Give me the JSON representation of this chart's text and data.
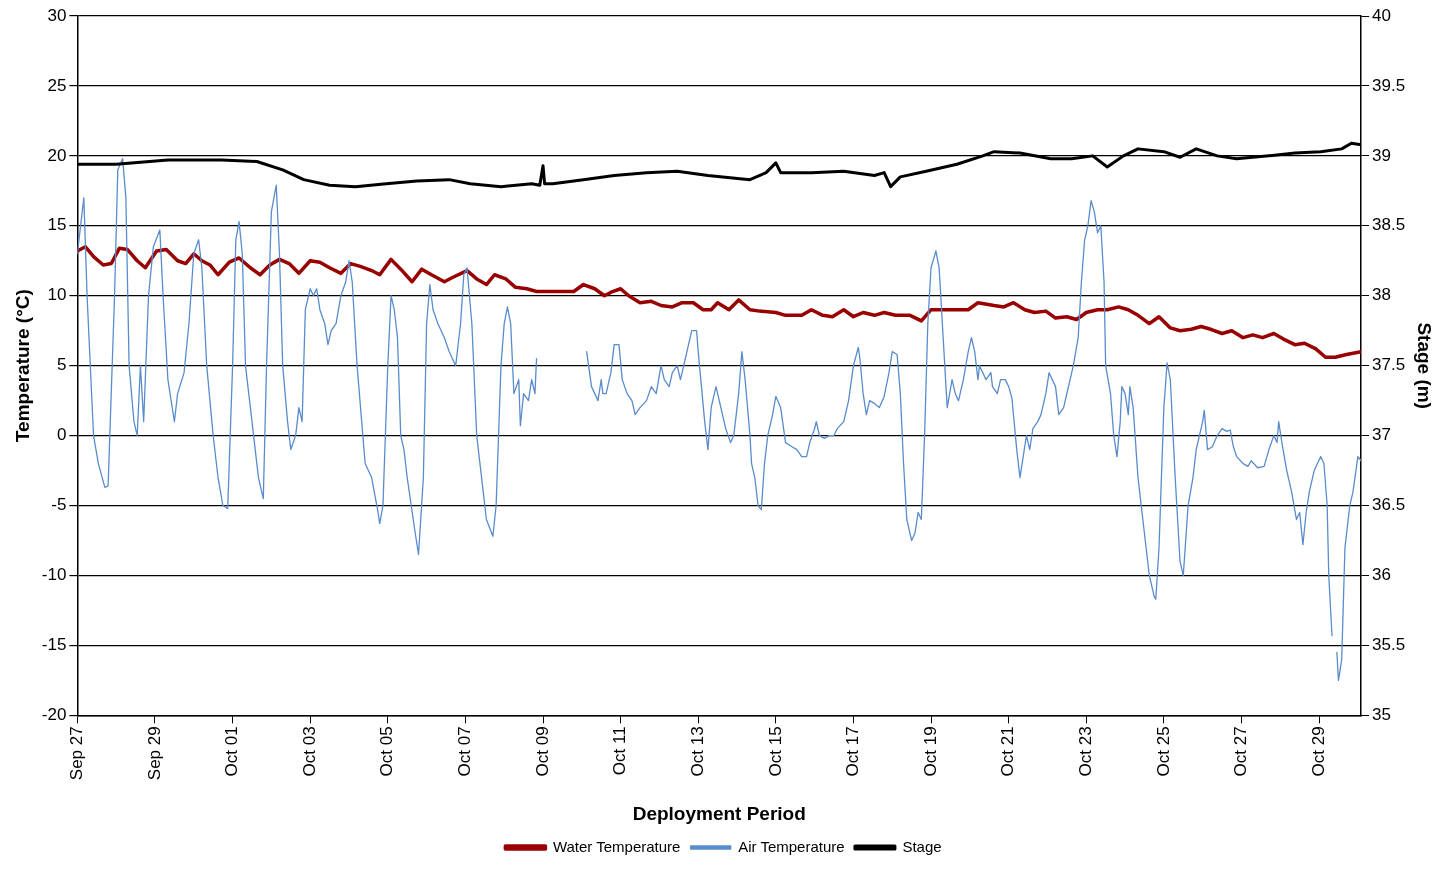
{
  "chart_data": {
    "type": "line",
    "xlabel": "Deployment Period",
    "ylabel": "Temperature (°C)",
    "y2label": "Stage (m)",
    "xlim": [
      "--09-27T00:00",
      "--10-30T02:00"
    ],
    "xticks": [
      {
        "value": "--09-27",
        "label": "Sep 27"
      },
      {
        "value": "--09-29",
        "label": "Sep 29"
      },
      {
        "value": "--10-01",
        "label": "Oct 01"
      },
      {
        "value": "--10-03",
        "label": "Oct 03"
      },
      {
        "value": "--10-05",
        "label": "Oct 05"
      },
      {
        "value": "--10-07",
        "label": "Oct 07"
      },
      {
        "value": "--10-09",
        "label": "Oct 09"
      },
      {
        "value": "--10-11",
        "label": "Oct 11"
      },
      {
        "value": "--10-13",
        "label": "Oct 13"
      },
      {
        "value": "--10-15",
        "label": "Oct 15"
      },
      {
        "value": "--10-17",
        "label": "Oct 17"
      },
      {
        "value": "--10-19",
        "label": "Oct 19"
      },
      {
        "value": "--10-21",
        "label": "Oct 21"
      },
      {
        "value": "--10-23",
        "label": "Oct 23"
      },
      {
        "value": "--10-25",
        "label": "Oct 25"
      },
      {
        "value": "--10-27",
        "label": "Oct 27"
      },
      {
        "value": "--10-29",
        "label": "Oct 29"
      }
    ],
    "ylim": [
      -20,
      30
    ],
    "yticks": [
      -20,
      -15,
      -10,
      -5,
      0,
      5,
      10,
      15,
      20,
      25,
      30
    ],
    "y2lim": [
      35,
      40
    ],
    "y2ticks": [
      35,
      35.5,
      36,
      36.5,
      37,
      37.5,
      38,
      38.5,
      39,
      39.5,
      40
    ],
    "grid": "y",
    "legend": "bottom",
    "marker": "none",
    "line_style": "solid",
    "series": [
      {
        "name": "Water Temperature",
        "color": "#990000",
        "x": [
          "--09-27T00:00",
          "--09-27T05:00",
          "--09-27T10:00",
          "--09-27T16:00",
          "--09-27T21:00",
          "--09-28T02:00",
          "--09-28T07:00",
          "--09-28T13:00",
          "--09-28T18:00",
          "--09-29T01:00",
          "--09-29T07:00",
          "--09-29T14:00",
          "--09-29T19:00",
          "--09-30T00:00",
          "--09-30T05:00",
          "--09-30T10:00",
          "--09-30T15:00",
          "--09-30T22:00",
          "--10-01T04:00",
          "--10-01T11:00",
          "--10-01T17:00",
          "--10-01T23:00",
          "--10-02T05:00",
          "--10-02T11:00",
          "--10-02T17:00",
          "--10-03T00:00",
          "--10-03T06:00",
          "--10-03T12:00",
          "--10-03T19:00",
          "--10-04T01:00",
          "--10-04T07:00",
          "--10-04T14:00",
          "--10-04T19:00",
          "--10-05T02:00",
          "--10-05T08:00",
          "--10-05T15:00",
          "--10-05T21:00",
          "--10-06T03:00",
          "--10-06T11:00",
          "--10-06T16:00",
          "--10-07T01:00",
          "--10-07T07:00",
          "--10-07T13:00",
          "--10-07T18:00",
          "--10-08T01:00",
          "--10-08T07:00",
          "--10-08T14:00",
          "--10-08T20:00",
          "--10-09T03:00",
          "--10-09T19:00",
          "--10-10T01:00",
          "--10-10T08:00",
          "--10-10T14:00",
          "--10-10T19:00",
          "--10-11T00:00",
          "--10-11T05:00",
          "--10-11T12:00",
          "--10-11T19:00",
          "--10-12T01:00",
          "--10-12T08:00",
          "--10-12T14:00",
          "--10-12T21:00",
          "--10-13T03:00",
          "--10-13T08:00",
          "--10-13T12:00",
          "--10-13T19:00",
          "--10-14T01:00",
          "--10-14T08:00",
          "--10-14T14:00",
          "--10-15T00:00",
          "--10-15T06:00",
          "--10-15T16:00",
          "--10-15T22:00",
          "--10-16T05:00",
          "--10-16T11:00",
          "--10-16T18:00",
          "--10-17T00:00",
          "--10-17T06:00",
          "--10-17T13:00",
          "--10-17T19:00",
          "--10-18T02:00",
          "--10-18T11:00",
          "--10-18T18:00",
          "--10-19T00:00",
          "--10-19T06:00",
          "--10-19T13:00",
          "--10-19T23:00",
          "--10-20T05:00",
          "--10-20T15:00",
          "--10-20T21:00",
          "--10-21T03:00",
          "--10-21T10:00",
          "--10-21T16:00",
          "--10-21T23:00",
          "--10-22T05:00",
          "--10-22T12:00",
          "--10-22T18:00",
          "--10-23T00:00",
          "--10-23T07:00",
          "--10-23T13:00",
          "--10-23T20:00",
          "--10-24T02:00",
          "--10-24T08:00",
          "--10-24T15:00",
          "--10-24T21:00",
          "--10-25T04:00",
          "--10-25T10:00",
          "--10-25T17:00",
          "--10-25T23:00",
          "--10-26T05:00",
          "--10-26T12:00",
          "--10-26T18:00",
          "--10-27T01:00",
          "--10-27T07:00",
          "--10-27T13:00",
          "--10-27T20:00",
          "--10-28T02:00",
          "--10-28T09:00",
          "--10-28T15:00",
          "--10-28T22:00",
          "--10-29T04:00",
          "--10-29T10:00",
          "--10-29T17:00",
          "--10-30T02:00"
        ],
        "values": [
          13.2,
          13.5,
          12.8,
          12.2,
          12.3,
          13.4,
          13.3,
          12.5,
          12,
          13.2,
          13.3,
          12.5,
          12.3,
          13,
          12.5,
          12.2,
          11.5,
          12.4,
          12.7,
          12,
          11.5,
          12.2,
          12.6,
          12.3,
          11.6,
          12.5,
          12.4,
          12,
          11.6,
          12.3,
          12.1,
          11.8,
          11.5,
          12.6,
          11.9,
          11,
          11.9,
          11.5,
          11,
          11.3,
          11.8,
          11.2,
          10.8,
          11.5,
          11.2,
          10.6,
          10.5,
          10.3,
          10.3,
          10.3,
          10.8,
          10.5,
          10,
          10.3,
          10.5,
          10,
          9.5,
          9.6,
          9.3,
          9.2,
          9.5,
          9.5,
          9,
          9,
          9.5,
          9,
          9.7,
          9,
          8.9,
          8.8,
          8.6,
          8.6,
          9,
          8.6,
          8.5,
          9,
          8.5,
          8.8,
          8.6,
          8.8,
          8.6,
          8.6,
          8.2,
          9,
          9,
          9,
          9,
          9.5,
          9.3,
          9.2,
          9.5,
          9,
          8.8,
          8.9,
          8.4,
          8.5,
          8.3,
          8.8,
          9,
          9,
          9.2,
          9,
          8.6,
          8,
          8.5,
          7.7,
          7.5,
          7.6,
          7.8,
          7.6,
          7.3,
          7.5,
          7,
          7.2,
          7,
          7.3,
          6.9,
          6.5,
          6.6,
          6.2,
          5.6,
          5.6,
          5.8,
          6
        ]
      },
      {
        "name": "Air Temperature",
        "color": "#5a8ccc",
        "x": [
          "--09-27T00:00",
          "--09-27T04:00",
          "--09-27T06:00",
          "--09-27T10:00",
          "--09-27T13:00",
          "--09-27T17:00",
          "--09-27T19:00",
          "--09-27T23:00",
          "--09-28T01:00",
          "--09-28T04:00",
          "--09-28T06:00",
          "--09-28T08:00",
          "--09-28T11:00",
          "--09-28T13:00",
          "--09-28T15:00",
          "--09-28T17:00",
          "--09-28T20:00",
          "--09-28T23:00",
          "--09-29T03:00",
          "--09-29T05:00",
          "--09-29T08:00",
          "--09-29T12:00",
          "--09-29T14:00",
          "--09-29T18:00",
          "--09-29T21:00",
          "--09-30T00:00",
          "--09-30T03:00",
          "--09-30T05:00",
          "--09-30T08:00",
          "--09-30T12:00",
          "--09-30T15:00",
          "--09-30T18:00",
          "--09-30T21:00",
          "--10-01T00:00",
          "--10-01T02:00",
          "--10-01T04:00",
          "--10-01T06:00",
          "--10-01T08:00",
          "--10-01T11:00",
          "--10-01T14:00",
          "--10-01T16:00",
          "--10-01T19:00",
          "--10-01T21:00",
          "--10-02T00:00",
          "--10-02T03:00",
          "--10-02T05:00",
          "--10-02T07:00",
          "--10-02T10:00",
          "--10-02T12:00",
          "--10-02T15:00",
          "--10-02T17:00",
          "--10-02T19:00",
          "--10-02T21:00",
          "--10-03T00:00",
          "--10-03T02:00",
          "--10-03T04:00",
          "--10-03T06:00",
          "--10-03T09:00",
          "--10-03T11:00",
          "--10-03T13:00",
          "--10-03T16:00",
          "--10-03T19:00",
          "--10-03T22:00",
          "--10-04T00:00",
          "--10-04T02:00",
          "--10-04T05:00",
          "--10-04T10:00",
          "--10-04T14:00",
          "--10-04T18:00",
          "--10-04T19:00",
          "--10-04T21:00",
          "--10-05T00:00",
          "--10-05T02:00",
          "--10-05T04:00",
          "--10-05T06:00",
          "--10-05T08:00",
          "--10-05T10:00",
          "--10-05T12:00",
          "--10-05T17:00",
          "--10-05T19:00",
          "--10-05T22:00",
          "--10-06T00:00",
          "--10-06T02:00",
          "--10-06T04:00",
          "--10-06T07:00",
          "--10-06T11:00",
          "--10-06T14:00",
          "--10-06T18:00",
          "--10-06T21:00",
          "--10-06T23:00",
          "--10-07T01:00",
          "--10-07T04:00",
          "--10-07T07:00",
          "--10-07T10:00",
          "--10-07T13:00",
          "--10-07T17:00",
          "--10-07T19:00",
          "--10-07T22:00",
          "--10-08T00:00",
          "--10-08T02:00",
          "--10-08T04:00",
          "--10-08T06:00",
          "--10-08T09:00",
          "--10-08T10:00",
          "--10-08T12:00",
          "--10-08T15:00",
          "--10-08T17:00",
          "--10-08T19:00",
          "--10-08T20:00",
          "--10-09T12:00",
          "--10-10T03:00",
          "--10-10T06:00",
          "--10-10T08:00",
          "--10-10T10:00",
          "--10-10T12:00",
          "--10-10T13:00",
          "--10-10T15:00",
          "--10-10T18:00",
          "--10-10T20:00",
          "--10-10T23:00",
          "--10-11T01:00",
          "--10-11T04:00",
          "--10-11T07:00",
          "--10-11T09:00",
          "--10-11T12:00",
          "--10-11T16:00",
          "--10-11T19:00",
          "--10-11T22:00",
          "--10-12T01:00",
          "--10-12T03:00",
          "--10-12T06:00",
          "--10-12T08:00",
          "--10-12T11:00",
          "--10-12T13:00",
          "--10-12T17:00",
          "--10-12T20:00",
          "--10-12T23:00",
          "--10-13T00:00",
          "--10-13T04:00",
          "--10-13T06:00",
          "--10-13T08:00",
          "--10-13T11:00",
          "--10-13T14:00",
          "--10-13T17:00",
          "--10-13T20:00",
          "--10-13T22:00",
          "--10-14T01:00",
          "--10-14T03:00",
          "--10-14T05:00",
          "--10-14T08:00",
          "--10-14T09:00",
          "--10-14T11:00",
          "--10-14T13:00",
          "--10-14T15:00",
          "--10-14T17:00",
          "--10-14T19:00",
          "--10-14T22:00",
          "--10-15T00:00",
          "--10-15T03:00",
          "--10-15T06:00",
          "--10-15T10:00",
          "--10-15T13:00",
          "--10-15T16:00",
          "--10-15T19:00",
          "--10-15T21:00",
          "--10-16T00:00",
          "--10-16T01:00",
          "--10-16T03:00",
          "--10-16T06:00",
          "--10-16T09:00",
          "--10-16T12:00",
          "--10-16T14:00",
          "--10-16T18:00",
          "--10-16T21:00",
          "--10-17T00:00",
          "--10-17T03:00",
          "--10-17T04:00",
          "--10-17T06:00",
          "--10-17T08:00",
          "--10-17T10:00",
          "--10-17T13:00",
          "--10-17T16:00",
          "--10-17T19:00",
          "--10-17T22:00",
          "--10-18T00:00",
          "--10-18T03:00",
          "--10-18T05:00",
          "--10-18T07:00",
          "--10-18T09:00",
          "--10-18T12:00",
          "--10-18T14:00",
          "--10-18T16:00",
          "--10-18T18:00",
          "--10-18T20:00",
          "--10-18T22:00",
          "--10-19T00:00",
          "--10-19T03:00",
          "--10-19T05:00",
          "--10-19T06:00",
          "--10-19T08:00",
          "--10-19T10:00",
          "--10-19T13:00",
          "--10-19T15:00",
          "--10-19T17:00",
          "--10-19T20:00",
          "--10-19T23:00",
          "--10-20T01:00",
          "--10-20T03:00",
          "--10-20T05:00",
          "--10-20T06:00",
          "--10-20T10:00",
          "--10-20T13:00",
          "--10-20T14:00",
          "--10-20T17:00",
          "--10-20T19:00",
          "--10-20T22:00",
          "--10-21T00:00",
          "--10-21T02:00",
          "--10-21T05:00",
          "--10-21T07:00",
          "--10-21T09:00",
          "--10-21T11:00",
          "--10-21T13:00",
          "--10-21T15:00",
          "--10-21T18:00",
          "--10-21T20:00",
          "--10-21T23:00",
          "--10-22T01:00",
          "--10-22T05:00",
          "--10-22T07:00",
          "--10-22T10:00",
          "--10-22T13:00",
          "--10-22T16:00",
          "--10-22T19:00",
          "--10-22T21:00",
          "--10-22T23:00",
          "--10-23T01:00",
          "--10-23T03:00",
          "--10-23T05:00",
          "--10-23T07:00",
          "--10-23T09:00",
          "--10-23T11:00",
          "--10-23T12:00",
          "--10-23T15:00",
          "--10-23T17:00",
          "--10-23T19:00",
          "--10-23T21:00",
          "--10-23T22:00",
          "--10-24T00:00",
          "--10-24T02:00",
          "--10-24T03:00",
          "--10-24T05:00",
          "--10-24T08:00",
          "--10-24T12:00",
          "--10-24T15:00",
          "--10-24T18:00",
          "--10-24T19:00",
          "--10-24T21:00",
          "--10-25T00:00",
          "--10-25T02:00",
          "--10-25T04:00",
          "--10-25T07:00",
          "--10-25T10:00",
          "--10-25T12:00",
          "--10-25T15:00",
          "--10-25T18:00",
          "--10-25T20:00",
          "--10-26T00:00",
          "--10-26T01:00",
          "--10-26T03:00",
          "--10-26T06:00",
          "--10-26T09:00",
          "--10-26T12:00",
          "--10-26T15:00",
          "--10-26T17:00",
          "--10-26T19:00",
          "--10-26T21:00",
          "--10-27T01:00",
          "--10-27T04:00",
          "--10-27T06:00",
          "--10-27T10:00",
          "--10-27T14:00",
          "--10-27T17:00",
          "--10-27T20:00",
          "--10-27T22:00",
          "--10-27T23:00",
          "--10-28T01:00",
          "--10-28T04:00",
          "--10-28T07:00",
          "--10-28T10:00",
          "--10-28T12:00",
          "--10-28T14:00",
          "--10-28T16:00",
          "--10-28T18:00",
          "--10-28T21:00",
          "--10-28T23:00",
          "--10-29T01:00",
          "--10-29T03:00",
          "--10-29T05:00",
          "--10-29T06:00",
          "--10-29T08:00",
          "--10-29T10:00",
          "--10-29T11:00",
          "--10-29T12:00",
          "--10-29T14:00",
          "--10-29T16:00",
          "--10-29T19:00",
          "--10-29T21:00",
          "--10-30T00:00",
          "--10-30T02:00"
        ],
        "values": [
          13,
          17,
          10,
          0,
          -2,
          -3.7,
          -3.6,
          10,
          19,
          19.8,
          17,
          5,
          1,
          0,
          5,
          1,
          10,
          13.5,
          14.7,
          10,
          4,
          1,
          3,
          4.5,
          8,
          13,
          14,
          12,
          5,
          0,
          -3,
          -5,
          -5.2,
          5,
          14,
          15.3,
          13,
          5,
          2,
          -1,
          -3,
          -4.5,
          5,
          16,
          17.9,
          13,
          5,
          1,
          -1,
          0,
          2,
          1,
          9,
          10.5,
          10,
          10.5,
          9,
          8,
          6.5,
          7.5,
          8,
          10,
          11,
          12.5,
          11,
          5,
          -2,
          -3,
          -5.5,
          -6.3,
          -5,
          5,
          10,
          9,
          7,
          0,
          -1,
          -3,
          -7,
          -8.5,
          -3,
          8,
          10.8,
          9,
          8,
          7,
          6,
          5,
          8,
          11.5,
          12,
          8,
          0,
          -3,
          -6,
          -7.2,
          -5,
          5,
          8,
          9.2,
          8,
          3,
          4,
          0.7,
          3,
          2.5,
          4,
          3,
          5.5,
          null,
          6,
          3.5,
          3,
          2.5,
          4,
          3,
          3,
          4.5,
          6.5,
          6.5,
          4,
          3,
          2.5,
          1.5,
          2,
          2.5,
          3.5,
          3,
          5,
          4,
          3.5,
          4.5,
          5,
          4,
          6,
          7.5,
          7.5,
          6,
          1,
          -1,
          2,
          3.5,
          2,
          0.5,
          -0.5,
          0,
          3,
          6,
          4,
          0,
          -2,
          -3,
          -5,
          -5.3,
          -2,
          0,
          1.5,
          2.8,
          2,
          -0.5,
          -0.8,
          -1,
          -1.5,
          -1.5,
          -0.5,
          0.5,
          1,
          0,
          -0.2,
          0,
          0,
          0.5,
          1,
          2.5,
          5,
          6.3,
          5.5,
          3,
          1.5,
          2.5,
          2.3,
          2,
          2.8,
          4.5,
          6,
          5.8,
          3,
          -2,
          -6,
          -7.5,
          -7,
          -5.5,
          -6,
          0,
          8,
          12,
          13.2,
          12,
          10,
          6,
          2,
          4,
          3,
          2.5,
          4,
          6,
          7,
          6,
          4,
          5,
          4,
          4.5,
          3.5,
          3,
          4,
          4,
          3.5,
          2.7,
          -1,
          -3,
          -1.5,
          0,
          -1,
          0.5,
          1,
          1.5,
          3,
          4.5,
          3.5,
          1.5,
          2,
          3.5,
          5,
          7,
          11,
          14,
          15,
          16.8,
          16,
          14.5,
          15,
          11,
          5,
          3,
          0,
          -1.5,
          1,
          3.5,
          3,
          1.5,
          3.5,
          2,
          -3,
          -7,
          -10,
          -11.5,
          -11.7,
          -8,
          2,
          5.2,
          4,
          -3,
          -9,
          -10,
          -5,
          -3,
          -1,
          1,
          1.8,
          -1,
          -0.8,
          0,
          0.5,
          0.3,
          0.4,
          -0.8,
          -1.5,
          -2,
          -2.2,
          -1.8,
          -2.3,
          -2.2,
          -1,
          0,
          -0.5,
          1,
          -0.5,
          -2.5,
          -4,
          -6,
          -5.5,
          -7.8,
          -5.5,
          -4,
          -2.5,
          -2,
          -1.5,
          -2,
          -5,
          -10,
          -14.3,
          null,
          -15.5,
          -17.5,
          -16,
          -8,
          -5,
          -4,
          -1.5,
          -1.8
        ]
      },
      {
        "name": "Stage",
        "color": "#000000",
        "axis": "y2",
        "x": [
          "--09-27T00:00",
          "--09-28T00:00",
          "--09-29T08:00",
          "--09-30T17:00",
          "--10-01T15:00",
          "--10-02T07:00",
          "--10-02T20:00",
          "--10-03T12:00",
          "--10-04T04:00",
          "--10-04T23:00",
          "--10-05T18:00",
          "--10-06T14:00",
          "--10-07T03:00",
          "--10-07T22:00",
          "--10-08T17:00",
          "--10-08T22:00",
          "--10-09T00:00",
          "--10-09T01:00",
          "--10-09T06:00",
          "--10-10T01:00",
          "--10-10T20:00",
          "--10-11T16:00",
          "--10-12T11:00",
          "--10-13T06:00",
          "--10-14T08:00",
          "--10-14T18:00",
          "--10-15T00:00",
          "--10-15T03:00",
          "--10-15T22:00",
          "--10-16T18:00",
          "--10-17T13:00",
          "--10-17T19:00",
          "--10-17T23:00",
          "--10-18T05:00",
          "--10-18T21:00",
          "--10-19T16:00",
          "--10-20T08:00",
          "--10-20T15:00",
          "--10-21T07:00",
          "--10-22T02:00",
          "--10-22T15:00",
          "--10-23T04:00",
          "--10-23T13:00",
          "--10-23T23:00",
          "--10-24T08:00",
          "--10-25T00:00",
          "--10-25T10:00",
          "--10-25T20:00",
          "--10-26T09:00",
          "--10-26T21:00",
          "--10-27T17:00",
          "--10-28T09:00",
          "--10-29T01:00",
          "--10-29T14:00",
          "--10-29T20:00",
          "--10-30T02:00"
        ],
        "values": [
          38.94,
          38.94,
          38.97,
          38.97,
          38.96,
          38.9,
          38.83,
          38.79,
          38.78,
          38.8,
          38.82,
          38.83,
          38.8,
          38.78,
          38.8,
          38.79,
          38.93,
          38.8,
          38.8,
          38.83,
          38.86,
          38.88,
          38.89,
          38.86,
          38.83,
          38.88,
          38.95,
          38.88,
          38.88,
          38.89,
          38.86,
          38.88,
          38.78,
          38.85,
          38.89,
          38.94,
          39,
          39.03,
          39.02,
          38.98,
          38.98,
          39,
          38.92,
          39,
          39.05,
          39.03,
          38.99,
          39.05,
          39,
          38.98,
          39,
          39.02,
          39.03,
          39.05,
          39.09,
          39.08
        ]
      }
    ]
  }
}
